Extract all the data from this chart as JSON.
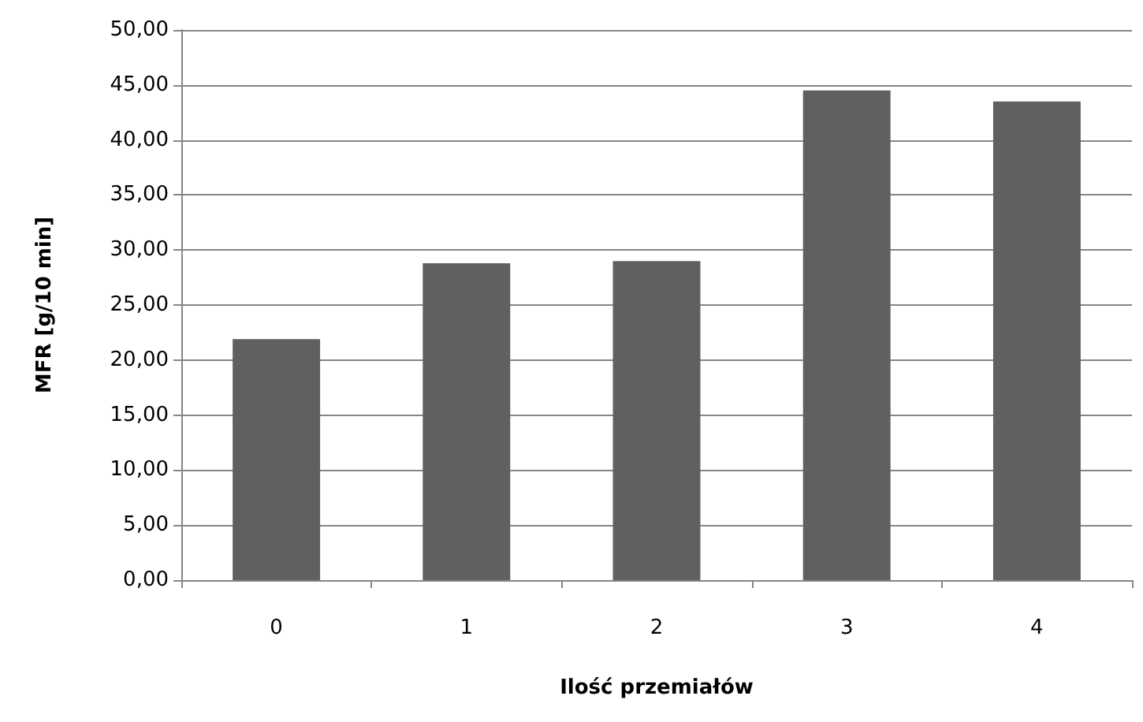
{
  "chart_data": {
    "type": "bar",
    "xlabel": "Ilość przemiałów",
    "ylabel": "MFR [g/10 min]",
    "categories": [
      "0",
      "1",
      "2",
      "3",
      "4"
    ],
    "values": [
      21.9,
      28.8,
      29.0,
      44.5,
      43.5
    ],
    "color": "#606060",
    "ylim": [
      0,
      50
    ],
    "yticks": [
      {
        "value": 0,
        "label": "0,00"
      },
      {
        "value": 5,
        "label": "5,00"
      },
      {
        "value": 10,
        "label": "10,00"
      },
      {
        "value": 15,
        "label": "15,00"
      },
      {
        "value": 20,
        "label": "20,00"
      },
      {
        "value": 25,
        "label": "25,00"
      },
      {
        "value": 30,
        "label": "30,00"
      },
      {
        "value": 35,
        "label": "35,00"
      },
      {
        "value": 40,
        "label": "40,00"
      },
      {
        "value": 45,
        "label": "45,00"
      },
      {
        "value": 50,
        "label": "50,00"
      }
    ],
    "grid": "y"
  }
}
